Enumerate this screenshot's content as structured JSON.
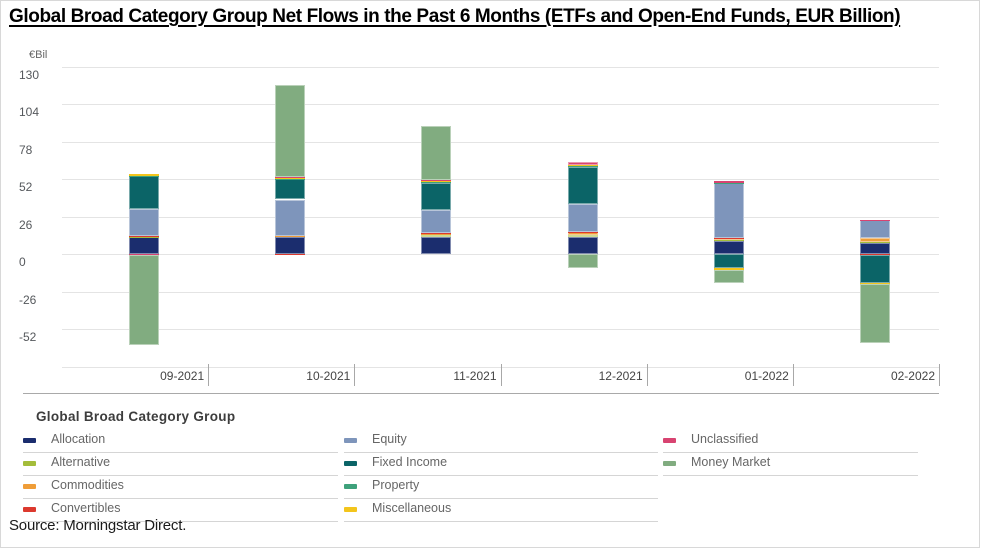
{
  "page": {
    "source": "Source: Morningstar Direct."
  },
  "chart_data": {
    "type": "bar",
    "stacked": true,
    "title": "Global Broad Category Group Net Flows in the Past 6 Months (ETFs and Open-End Funds, EUR Billion)",
    "unit_label": "€Bil",
    "categories": [
      "09-2021",
      "10-2021",
      "11-2021",
      "12-2021",
      "01-2022",
      "02-2022"
    ],
    "series": [
      {
        "name": "Allocation",
        "color": "#1b2d6e",
        "values": [
          11.5,
          11.5,
          12,
          12,
          9,
          8
        ]
      },
      {
        "name": "Alternative",
        "color": "#a4bd3a",
        "values": [
          0.5,
          1,
          1.5,
          1.5,
          0.5,
          0.3
        ]
      },
      {
        "name": "Commodities",
        "color": "#ef9d38",
        "values": [
          0.3,
          0.3,
          0.7,
          1.5,
          1.5,
          3
        ]
      },
      {
        "name": "Convertibles",
        "color": "#dc392e",
        "values": [
          0.2,
          -1,
          0.2,
          0.2,
          0.2,
          -1
        ]
      },
      {
        "name": "Equity",
        "color": "#7e95bb",
        "values": [
          18.5,
          25,
          16,
          19.5,
          38,
          12
        ]
      },
      {
        "name": "Fixed Income",
        "color": "#0b6467",
        "values": [
          23,
          14,
          19,
          26,
          -10,
          -19
        ]
      },
      {
        "name": "Property",
        "color": "#3ea17b",
        "values": [
          0.2,
          0.3,
          0.3,
          0.5,
          0.2,
          0.2
        ]
      },
      {
        "name": "Miscellaneous",
        "color": "#f3c51c",
        "values": [
          1,
          0.5,
          1,
          0.5,
          -1,
          -1
        ]
      },
      {
        "name": "Unclassified",
        "color": "#d84371",
        "values": [
          -1,
          1,
          0.3,
          2,
          1,
          0.3
        ]
      },
      {
        "name": "Money Market",
        "color": "#81ac80",
        "values": [
          -62,
          63.5,
          37.5,
          -10,
          -9,
          -41
        ]
      }
    ],
    "ylim": [
      -78,
      130
    ],
    "yticks": [
      130,
      104,
      78,
      52,
      26,
      0,
      -26,
      -52
    ],
    "grid": true,
    "legend": {
      "title": "Global Broad Category Group",
      "position": "bottom",
      "columns": [
        [
          "Allocation",
          "Alternative",
          "Commodities",
          "Convertibles"
        ],
        [
          "Equity",
          "Fixed Income",
          "Property",
          "Miscellaneous"
        ],
        [
          "Unclassified",
          "Money Market"
        ]
      ]
    }
  }
}
